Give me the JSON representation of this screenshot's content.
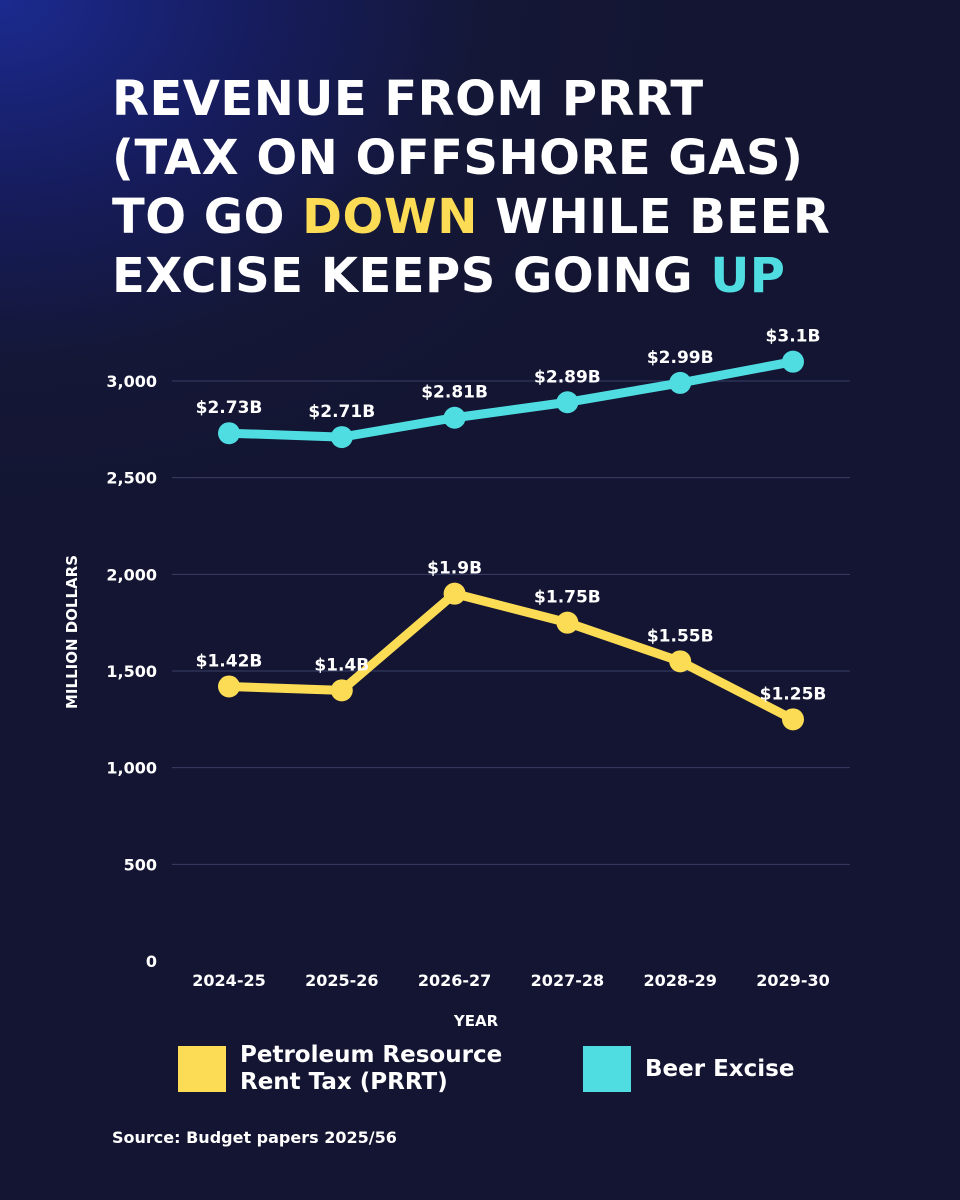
{
  "title": {
    "line1": "REVENUE FROM PRRT",
    "line2": "(TAX ON OFFSHORE GAS)",
    "line3_pre": "TO GO ",
    "line3_highlight": "DOWN",
    "line3_post": " WHILE BEER",
    "line4_pre": "EXCISE KEEPS GOING ",
    "line4_highlight": "UP"
  },
  "colors": {
    "highlight_down": "#fcdc55",
    "highlight_up": "#4fdde1",
    "background": "#131532"
  },
  "chart_data": {
    "type": "line",
    "categories": [
      "2024-25",
      "2025-26",
      "2026-27",
      "2027-28",
      "2028-29",
      "2029-30"
    ],
    "series": [
      {
        "name": "Beer Excise",
        "color": "#4fdde1",
        "values": [
          2730,
          2710,
          2810,
          2890,
          2990,
          3100
        ],
        "labels": [
          "$2.73B",
          "$2.71B",
          "$2.81B",
          "$2.89B",
          "$2.99B",
          "$3.1B"
        ]
      },
      {
        "name": "Petroleum Resource\nRent Tax (PRRT)",
        "color": "#fcdc55",
        "values": [
          1420,
          1400,
          1900,
          1750,
          1550,
          1250
        ],
        "labels": [
          "$1.42B",
          "$1.4B",
          "$1.9B",
          "$1.75B",
          "$1.55B",
          "$1.25B"
        ]
      }
    ],
    "xlabel": "YEAR",
    "ylabel": "MILLION DOLLARS",
    "ylim": [
      0,
      3000
    ],
    "yticks": [
      0,
      500,
      1000,
      1500,
      2000,
      2500,
      3000
    ],
    "ytick_labels": [
      "0",
      "500",
      "1,000",
      "1,500",
      "2,000",
      "2,500",
      "3,000"
    ],
    "grid": true
  },
  "legend": {
    "items": [
      {
        "label": "Petroleum Resource\nRent Tax (PRRT)",
        "color": "#fcdc55"
      },
      {
        "label": "Beer Excise",
        "color": "#4fdde1"
      }
    ]
  },
  "source": "Source: Budget papers 2025/56"
}
